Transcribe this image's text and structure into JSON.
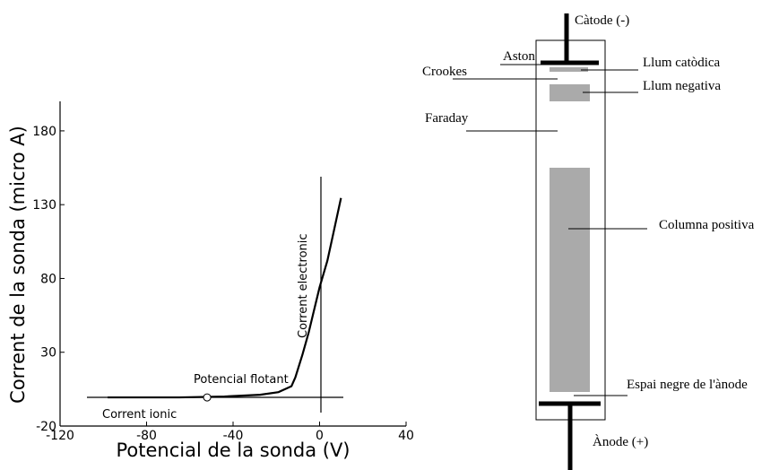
{
  "chart_data": {
    "type": "line",
    "x_label": "Potencial de la sonda (V)",
    "y_label": "Corrent de la sonda (micro A)",
    "xlim": [
      -120,
      40
    ],
    "ylim": [
      -20,
      200
    ],
    "xticks": [
      -120,
      -80,
      -40,
      0,
      40
    ],
    "yticks": [
      -20,
      30,
      80,
      130,
      180
    ],
    "color": "#000000",
    "x": [
      -98,
      -65,
      -44,
      -27.5,
      -19,
      -13,
      -11.2,
      -7.9,
      -5,
      -3,
      0,
      3.6,
      6.5,
      9.9
    ],
    "values": [
      -0.6,
      -0.6,
      0,
      1.2,
      3,
      7,
      13,
      28.5,
      43.6,
      55.8,
      74,
      92,
      111.5,
      134.5
    ],
    "marker_x": -52,
    "marker_y": -0.6,
    "annotations": [
      "Potencial flotant",
      "Corrent ionic",
      "Corrent electronic"
    ]
  },
  "diagram": {
    "labels": [
      "Càtode (-)",
      "Aston",
      "Crookes",
      "Llum catòdica",
      "Llum negativa",
      "Faraday",
      "Columna positiva",
      "Espai negre de l'ànode",
      "Ànode (+)"
    ]
  }
}
